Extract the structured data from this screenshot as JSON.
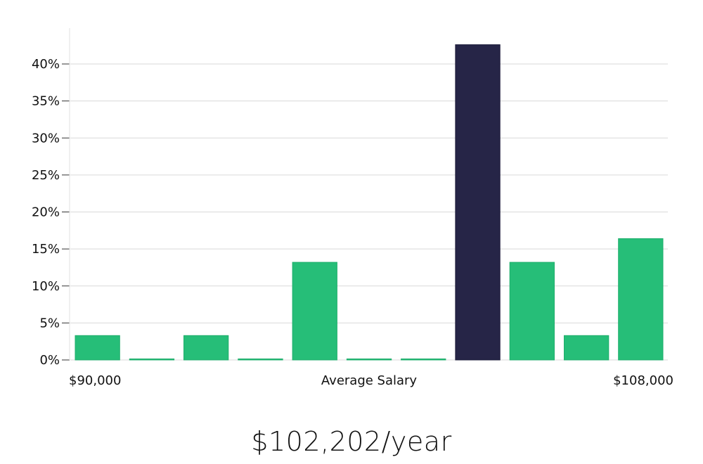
{
  "chart_data": {
    "type": "bar",
    "categories": [
      "1",
      "2",
      "3",
      "4",
      "5",
      "6",
      "7",
      "8",
      "9",
      "10",
      "11"
    ],
    "values": [
      3.3,
      0,
      3.3,
      0,
      13.2,
      0,
      0,
      42.6,
      13.2,
      3.3,
      16.4
    ],
    "highlight_index": 7,
    "ylim": [
      0,
      45
    ],
    "yticks": [
      0,
      5,
      10,
      15,
      20,
      25,
      30,
      35,
      40
    ],
    "ytick_labels": [
      "0%",
      "5%",
      "10%",
      "15%",
      "20%",
      "25%",
      "30%",
      "35%",
      "40%"
    ],
    "x_left_label": "$90,000",
    "x_center_label": "Average Salary",
    "x_right_label": "$108,000",
    "grid": true,
    "colors": {
      "bar": "#26be78",
      "highlight": "#262547",
      "grid": "#d9d9d9",
      "axis": "#e0e0e0"
    }
  },
  "salary_text": "$102,202/year"
}
